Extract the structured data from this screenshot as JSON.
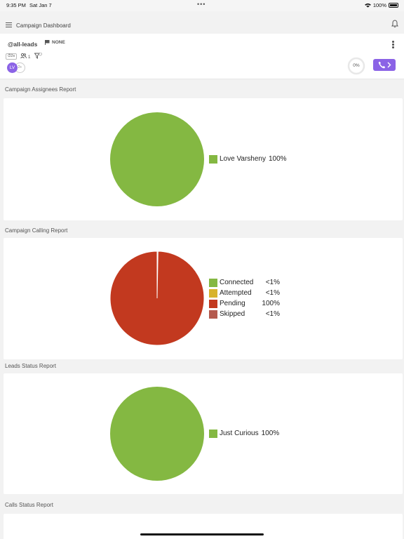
{
  "status_bar": {
    "time": "9:35 PM",
    "date": "Sat Jan 7",
    "battery": "100%"
  },
  "header": {
    "title": "Campaign Dashboard"
  },
  "campaign": {
    "list_name": "@all-leads",
    "priority": "NONE",
    "duration_chip": "2s",
    "assignee_count": "1",
    "avatar_initials": "LV",
    "avatar_more": "2+",
    "progress": "0%"
  },
  "colors": {
    "green": "#84b842",
    "red": "#c2391f",
    "yellow": "#d8b32c",
    "skipped": "#b45a4e",
    "accent": "#8b63e6"
  },
  "sections": [
    {
      "title": "Campaign Assignees Report"
    },
    {
      "title": "Campaign Calling Report"
    },
    {
      "title": "Leads Status Report"
    },
    {
      "title": "Calls Status Report"
    }
  ],
  "chart_data": [
    {
      "type": "pie",
      "title": "Campaign Assignees Report",
      "categories": [
        "Love Varsheny"
      ],
      "values": [
        100
      ],
      "labels": [
        "100%"
      ],
      "colors": [
        "#84b842"
      ],
      "legend_position": "right"
    },
    {
      "type": "pie",
      "title": "Campaign Calling Report",
      "categories": [
        "Connected",
        "Attempted",
        "Pending",
        "Skipped"
      ],
      "values": [
        0.3,
        0,
        99.7,
        0
      ],
      "labels": [
        "<1%",
        "<1%",
        "100%",
        "<1%"
      ],
      "colors": [
        "#84b842",
        "#d8b32c",
        "#c2391f",
        "#b45a4e"
      ],
      "legend_position": "right"
    },
    {
      "type": "pie",
      "title": "Leads Status Report",
      "categories": [
        "Just Curious"
      ],
      "values": [
        100
      ],
      "labels": [
        "100%"
      ],
      "colors": [
        "#84b842"
      ],
      "legend_position": "right"
    }
  ]
}
